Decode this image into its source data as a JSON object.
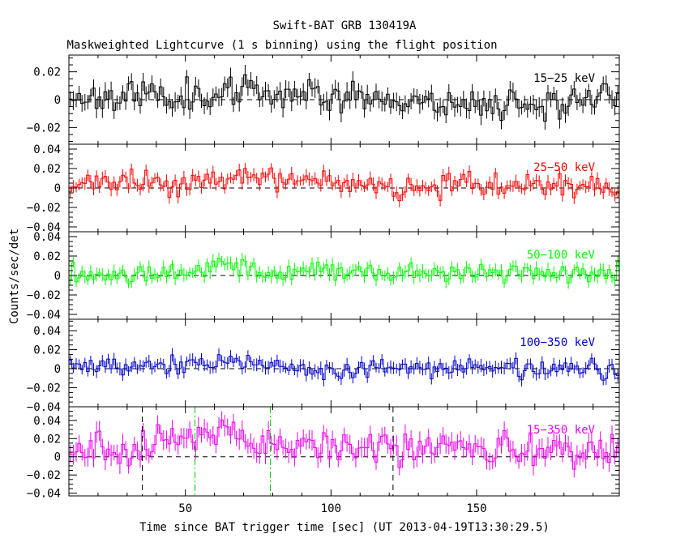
{
  "figure": {
    "title": "Swift-BAT GRB 130419A",
    "subtitle": "Maskweighted Lightcurve (1 s binning) using the flight position",
    "xlabel": "Time since BAT trigger time [sec] (UT 2013-04-19T13:30:29.5)",
    "ylabel": "Counts/sec/det"
  },
  "chart_data": {
    "type": "line",
    "style": "step-with-error-bars",
    "xlim": [
      10,
      199
    ],
    "x_ticks": [
      50,
      100,
      150
    ],
    "x_tick_labels": [
      "50",
      "100",
      "150"
    ],
    "panels": [
      {
        "name": "15-25 keV",
        "label": "15−25 keV",
        "color": "#000000",
        "ylim": [
          -0.032,
          0.032
        ],
        "y_ticks": [
          -0.02,
          0,
          0.02
        ],
        "y_tick_labels": [
          "−0.02",
          "0",
          "0.02"
        ],
        "seed": 11,
        "sigma": 0.0055,
        "err": 0.006,
        "trend": [
          [
            10,
            0.002
          ],
          [
            60,
            0.004
          ],
          [
            90,
            0.006
          ],
          [
            120,
            0.0
          ],
          [
            150,
            -0.003
          ],
          [
            199,
            0.0
          ]
        ]
      },
      {
        "name": "25-50 keV",
        "label": "25−50 keV",
        "color": "#ff0000",
        "ylim": [
          -0.045,
          0.045
        ],
        "y_ticks": [
          -0.04,
          -0.02,
          0,
          0.02,
          0.04
        ],
        "y_tick_labels": [
          "−0.04",
          "−0.02",
          "0",
          "0.02",
          "0.04"
        ],
        "seed": 23,
        "sigma": 0.006,
        "err": 0.006,
        "trend": [
          [
            10,
            0.003
          ],
          [
            50,
            0.006
          ],
          [
            65,
            0.01
          ],
          [
            90,
            0.006
          ],
          [
            120,
            0.002
          ],
          [
            160,
            0.003
          ],
          [
            199,
            0.0
          ]
        ]
      },
      {
        "name": "50-100 keV",
        "label": "50−100 keV",
        "color": "#00ff00",
        "ylim": [
          -0.045,
          0.045
        ],
        "y_ticks": [
          -0.04,
          -0.02,
          0,
          0.02,
          0.04
        ],
        "y_tick_labels": [
          "−0.04",
          "−0.02",
          "0",
          "0.02",
          "0.04"
        ],
        "seed": 37,
        "sigma": 0.005,
        "err": 0.006,
        "trend": [
          [
            10,
            0.001
          ],
          [
            50,
            0.004
          ],
          [
            62,
            0.012
          ],
          [
            75,
            0.004
          ],
          [
            120,
            0.003
          ],
          [
            199,
            0.002
          ]
        ]
      },
      {
        "name": "100-350 keV",
        "label": "100−350 keV",
        "color": "#0000cc",
        "ylim": [
          -0.04,
          0.052
        ],
        "y_ticks": [
          -0.04,
          -0.02,
          0,
          0.02,
          0.04
        ],
        "y_tick_labels": [
          "−0.04",
          "−0.02",
          "0",
          "0.02",
          "0.04"
        ],
        "seed": 53,
        "sigma": 0.005,
        "err": 0.006,
        "trend": [
          [
            10,
            0.002
          ],
          [
            60,
            0.006
          ],
          [
            85,
            0.002
          ],
          [
            100,
            -0.004
          ],
          [
            130,
            0.002
          ],
          [
            199,
            0.0
          ]
        ]
      },
      {
        "name": "15-350 keV",
        "label": "15−350 keV",
        "color": "#ee00ee",
        "ylim": [
          -0.043,
          0.055
        ],
        "y_ticks": [
          -0.04,
          -0.02,
          0,
          0.02,
          0.04
        ],
        "y_tick_labels": [
          "−0.04",
          "−0.02",
          "0",
          "0.02",
          "0.04"
        ],
        "seed": 71,
        "sigma": 0.009,
        "err": 0.01,
        "trend": [
          [
            10,
            0.006
          ],
          [
            35,
            0.01
          ],
          [
            55,
            0.025
          ],
          [
            63,
            0.035
          ],
          [
            70,
            0.018
          ],
          [
            100,
            0.012
          ],
          [
            130,
            0.01
          ],
          [
            160,
            0.006
          ],
          [
            199,
            0.008
          ]
        ]
      }
    ],
    "vlines": [
      {
        "x": 35.2,
        "style": "black-dashed",
        "color": "#000000"
      },
      {
        "x": 53.3,
        "style": "green-dashdot",
        "color": "#00cc00"
      },
      {
        "x": 79.2,
        "style": "green-dashdot",
        "color": "#00cc00"
      },
      {
        "x": 121.3,
        "style": "black-dashed",
        "color": "#000000"
      }
    ]
  }
}
